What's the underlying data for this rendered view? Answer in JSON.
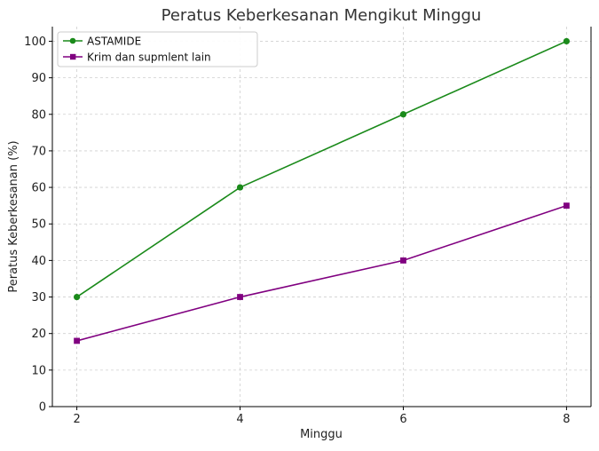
{
  "chart_data": {
    "type": "line",
    "title": "Peratus Keberkesanan Mengikut Minggu",
    "xlabel": "Minggu",
    "ylabel": "Peratus Keberkesanan (%)",
    "x": [
      2,
      4,
      6,
      8
    ],
    "xlim": [
      1.7,
      8.3
    ],
    "ylim": [
      0,
      104
    ],
    "xticks": [
      2,
      4,
      6,
      8
    ],
    "yticks": [
      0,
      10,
      20,
      30,
      40,
      50,
      60,
      70,
      80,
      90,
      100
    ],
    "grid": true,
    "legend_position": "top-left",
    "series": [
      {
        "name": "ASTAMIDE",
        "values": [
          30,
          60,
          80,
          100
        ],
        "color": "#1a8a1a",
        "marker": "circle"
      },
      {
        "name": "Krim dan supmlent lain",
        "values": [
          18,
          30,
          40,
          55
        ],
        "color": "#800080",
        "marker": "square"
      }
    ]
  }
}
